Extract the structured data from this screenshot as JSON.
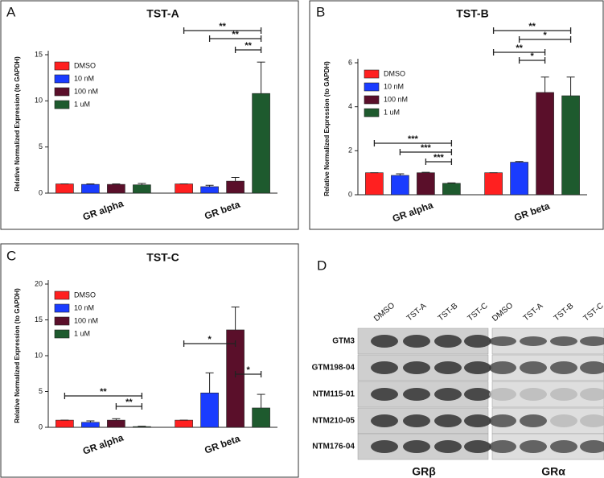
{
  "chart_data": [
    {
      "type": "bar",
      "panel": "A",
      "title": "TST-A",
      "y_label": "Relative Normalized Expression (to GAPDH)",
      "categories": [
        "GR alpha",
        "GR beta"
      ],
      "series": [
        {
          "name": "DMSO",
          "color": "#ff2020",
          "values": [
            1,
            1
          ],
          "errors": [
            0,
            0
          ]
        },
        {
          "name": "10 nM",
          "color": "#1a3cff",
          "values": [
            0.95,
            0.7
          ],
          "errors": [
            0.05,
            0.15
          ]
        },
        {
          "name": "100 nM",
          "color": "#5a0f2a",
          "values": [
            0.95,
            1.3
          ],
          "errors": [
            0.05,
            0.4
          ]
        },
        {
          "name": "1 uM",
          "color": "#1e5a2e",
          "values": [
            0.9,
            10.8
          ],
          "errors": [
            0.15,
            3.4
          ]
        }
      ],
      "ylim": [
        0,
        15
      ],
      "yticks": [
        0,
        5,
        10,
        15
      ],
      "significance": [
        "**",
        "**",
        "**"
      ]
    },
    {
      "type": "bar",
      "panel": "B",
      "title": "TST-B",
      "y_label": "Relative Normalized Expression (to GAPDH)",
      "categories": [
        "GR alpha",
        "GR beta"
      ],
      "series": [
        {
          "name": "DMSO",
          "color": "#ff2020",
          "values": [
            1,
            1
          ],
          "errors": [
            0,
            0
          ]
        },
        {
          "name": "10 nM",
          "color": "#1a3cff",
          "values": [
            0.88,
            1.48
          ],
          "errors": [
            0.07,
            0.03
          ]
        },
        {
          "name": "100 nM",
          "color": "#5a0f2a",
          "values": [
            1.0,
            4.65
          ],
          "errors": [
            0.02,
            0.7
          ]
        },
        {
          "name": "1 uM",
          "color": "#1e5a2e",
          "values": [
            0.52,
            4.5
          ],
          "errors": [
            0.02,
            0.85
          ]
        }
      ],
      "ylim": [
        0,
        6
      ],
      "yticks": [
        0,
        2,
        4,
        6
      ],
      "significance": [
        "***",
        "***",
        "***",
        "**",
        "*",
        "**",
        "*"
      ]
    },
    {
      "type": "bar",
      "panel": "C",
      "title": "TST-C",
      "y_label": "Relative Normalized Expression (to GAPDH)",
      "categories": [
        "GR alpha",
        "GR beta"
      ],
      "series": [
        {
          "name": "DMSO",
          "color": "#ff2020",
          "values": [
            1,
            1
          ],
          "errors": [
            0,
            0
          ]
        },
        {
          "name": "10 nM",
          "color": "#1a3cff",
          "values": [
            0.7,
            4.8
          ],
          "errors": [
            0.2,
            2.8
          ]
        },
        {
          "name": "100 nM",
          "color": "#5a0f2a",
          "values": [
            1.0,
            13.6
          ],
          "errors": [
            0.2,
            3.2
          ]
        },
        {
          "name": "1 uM",
          "color": "#1e5a2e",
          "values": [
            0.1,
            2.7
          ],
          "errors": [
            0.05,
            1.9
          ]
        }
      ],
      "ylim": [
        0,
        20
      ],
      "yticks": [
        0,
        5,
        10,
        15,
        20
      ],
      "significance": [
        "**",
        "**",
        "*",
        "*"
      ]
    }
  ],
  "blot": {
    "panel": "D",
    "lanes": [
      "DMSO",
      "TST-A",
      "TST-B",
      "TST-C"
    ],
    "rows": [
      "GTM3",
      "GTM198-04",
      "NTM115-01",
      "NTM210-05",
      "NTM176-04"
    ],
    "groups": [
      "GRβ",
      "GRα"
    ]
  }
}
